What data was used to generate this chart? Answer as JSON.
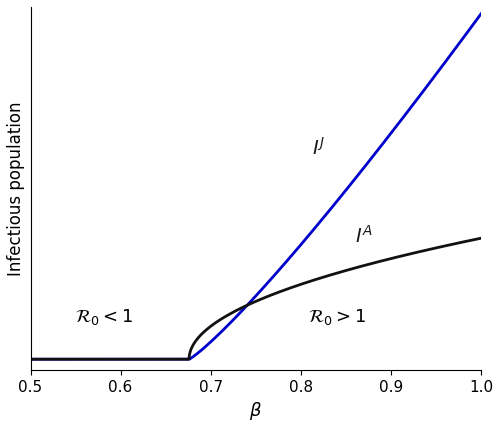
{
  "beta_threshold": 0.676,
  "beta_min": 0.5,
  "beta_max": 1.0,
  "num_points": 1000,
  "IJ_color": "#0000cc",
  "IA_color": "#111111",
  "xlabel": "$\\beta$",
  "ylabel": "Infectious population",
  "xlabel_fontsize": 13,
  "ylabel_fontsize": 12,
  "xticks": [
    0.5,
    0.6,
    0.7,
    0.8,
    0.9,
    1.0
  ],
  "xlim": [
    0.5,
    1.0
  ],
  "R0_less_text": "$\\mathcal{R}_0 < 1$",
  "R0_greater_text": "$\\mathcal{R}_0 > 1$",
  "IJ_label": "$I^J$",
  "IA_label": "$I^A$",
  "annotation_fontsize": 13,
  "line_width": 2.0,
  "background_color": "#ffffff",
  "fig_width": 5.0,
  "fig_height": 4.29
}
